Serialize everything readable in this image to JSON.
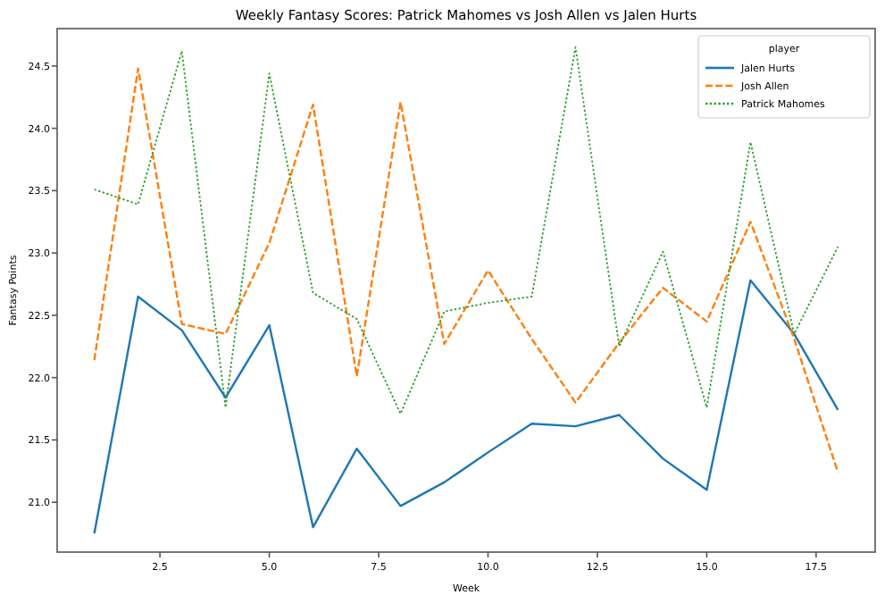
{
  "chart_data": {
    "type": "line",
    "title": "Weekly Fantasy Scores: Patrick Mahomes vs Josh Allen vs Jalen Hurts",
    "xlabel": "Week",
    "ylabel": "Fantasy Points",
    "legend_title": "player",
    "legend": "top right",
    "grid": false,
    "x": [
      1,
      2,
      3,
      4,
      5,
      6,
      7,
      8,
      9,
      10,
      11,
      12,
      13,
      14,
      15,
      16,
      17,
      18
    ],
    "xlim": [
      0.15,
      18.85
    ],
    "xticks": [
      2.5,
      {
        "value": 5,
        "label": "5.0"
      },
      7.5,
      {
        "value": 10,
        "label": "10.0"
      },
      12.5,
      {
        "value": 15,
        "label": "15.0"
      },
      17.5
    ],
    "ylim": [
      20.6,
      24.8
    ],
    "yticks": [
      {
        "value": 21,
        "label": "21.0"
      },
      21.5,
      {
        "value": 22,
        "label": "22.0"
      },
      22.5,
      {
        "value": 23,
        "label": "23.0"
      },
      23.5,
      {
        "value": 24,
        "label": "24.0"
      },
      24.5
    ],
    "series": [
      {
        "name": "Jalen Hurts",
        "color": "#1f77b4",
        "line_style": "solid",
        "values": [
          20.75,
          22.65,
          22.38,
          21.84,
          22.42,
          20.8,
          21.43,
          20.97,
          21.16,
          21.4,
          21.63,
          21.61,
          21.7,
          21.35,
          21.1,
          22.78,
          22.35,
          21.74
        ]
      },
      {
        "name": "Josh Allen",
        "color": "#ff7f0e",
        "line_style": "dashed",
        "values": [
          22.14,
          24.48,
          22.43,
          22.35,
          23.08,
          24.19,
          22.01,
          24.21,
          22.27,
          22.86,
          22.31,
          21.8,
          22.28,
          22.72,
          22.45,
          23.25,
          22.31,
          21.24
        ]
      },
      {
        "name": "Patrick Mahomes",
        "color": "#2ca02c",
        "line_style": "dotted",
        "values": [
          23.51,
          23.39,
          24.62,
          21.76,
          24.44,
          22.68,
          22.47,
          21.71,
          22.53,
          22.6,
          22.65,
          24.65,
          22.25,
          23.01,
          21.76,
          23.89,
          22.35,
          23.05
        ]
      }
    ]
  }
}
